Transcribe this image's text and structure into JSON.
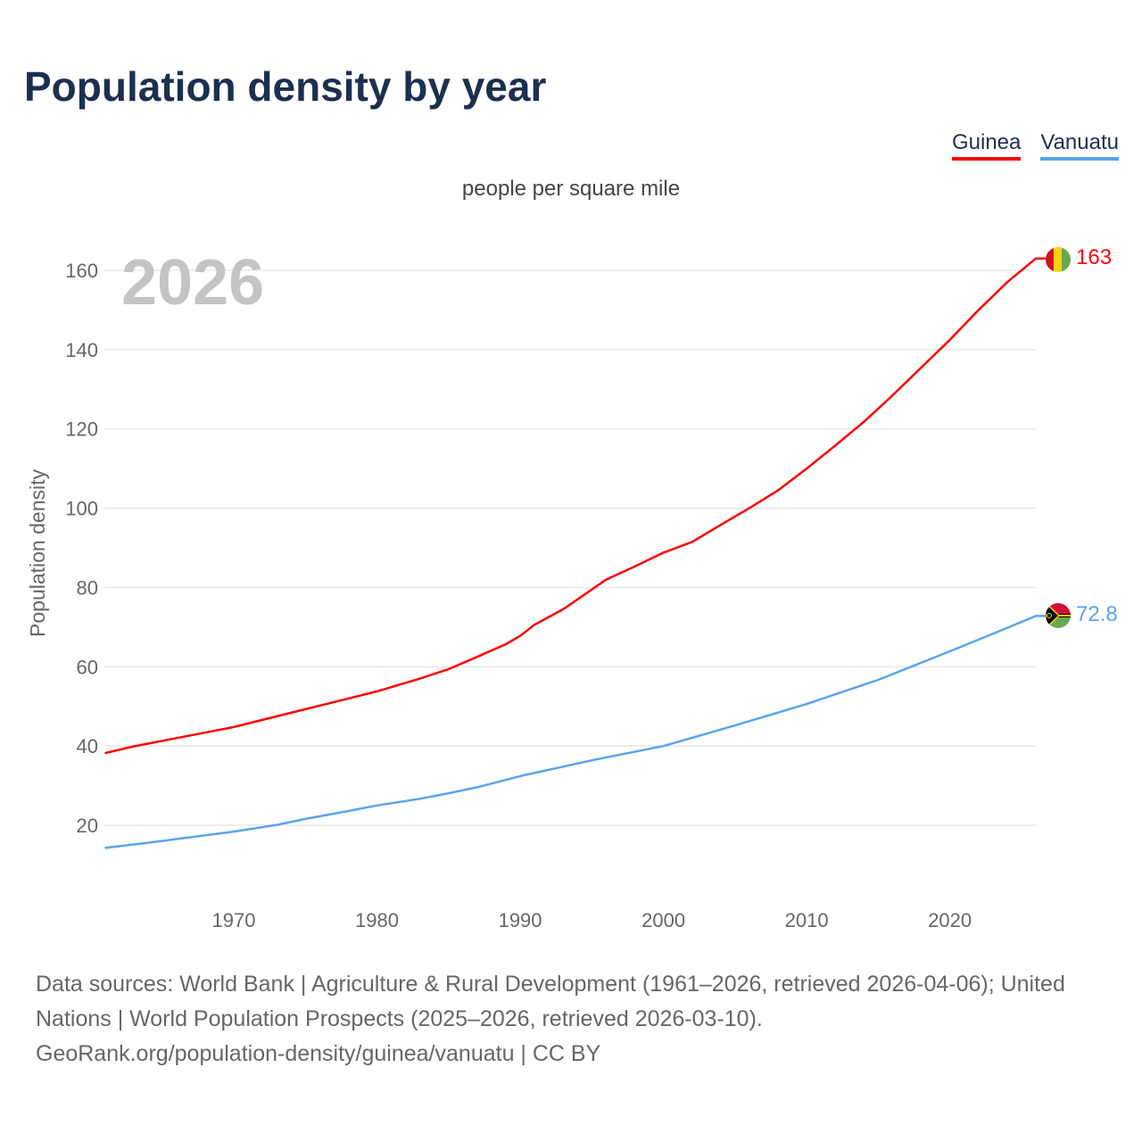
{
  "title": "Population density by year",
  "legend": [
    {
      "label": "Guinea",
      "color": "#ff0000"
    },
    {
      "label": "Vanuatu",
      "color": "#5ba4ec"
    }
  ],
  "chart_data": {
    "type": "line",
    "title": "Population density by year",
    "subtitle": "people per square mile",
    "ylabel": "Population density",
    "xlabel": "",
    "year_watermark": "2026",
    "xlim": [
      1961,
      2026
    ],
    "ylim": [
      0,
      170
    ],
    "x_ticks": [
      1970,
      1980,
      1990,
      2000,
      2010,
      2020
    ],
    "y_ticks": [
      20,
      40,
      60,
      80,
      100,
      120,
      140,
      160
    ],
    "grid": true,
    "legend_position": "top-right",
    "series": [
      {
        "name": "Guinea",
        "color": "#ff0000",
        "end_label": "163",
        "flag": "guinea-flag",
        "x": [
          1961,
          1963,
          1966,
          1970,
          1975,
          1980,
          1983,
          1985,
          1987,
          1989,
          1990,
          1991,
          1993,
          1996,
          1998,
          2000,
          2002,
          2004,
          2006,
          2008,
          2010,
          2012,
          2014,
          2016,
          2018,
          2020,
          2022,
          2024,
          2026
        ],
        "y": [
          38.2,
          39.9,
          42,
          44.8,
          49.3,
          53.8,
          57,
          59.4,
          62.5,
          65.7,
          67.8,
          70.6,
          74.5,
          82,
          85.3,
          88.8,
          91.5,
          95.8,
          100,
          104.5,
          110,
          115.8,
          121.8,
          128.5,
          135.5,
          142.5,
          150,
          157,
          163
        ]
      },
      {
        "name": "Vanuatu",
        "color": "#5ba4ec",
        "end_label": "72.8",
        "flag": "vanuatu-flag",
        "x": [
          1961,
          1964,
          1967,
          1970,
          1973,
          1975,
          1978,
          1980,
          1983,
          1985,
          1987,
          1990,
          1995,
          2000,
          2005,
          2010,
          2015,
          2020,
          2023,
          2026
        ],
        "y": [
          14.3,
          15.6,
          17,
          18.4,
          20.1,
          21.6,
          23.6,
          25,
          26.7,
          28.1,
          29.6,
          32.4,
          36.4,
          40,
          45.2,
          50.6,
          56.7,
          63.9,
          68.3,
          72.8
        ]
      }
    ]
  },
  "source_lines": [
    "Data sources: World Bank | Agriculture & Rural Development (1961–2026, retrieved 2026-04-06); United Nations | World Population Prospects (2025–2026, retrieved 2026-03-10).",
    "GeoRank.org/population-density/guinea/vanuatu | CC BY"
  ]
}
